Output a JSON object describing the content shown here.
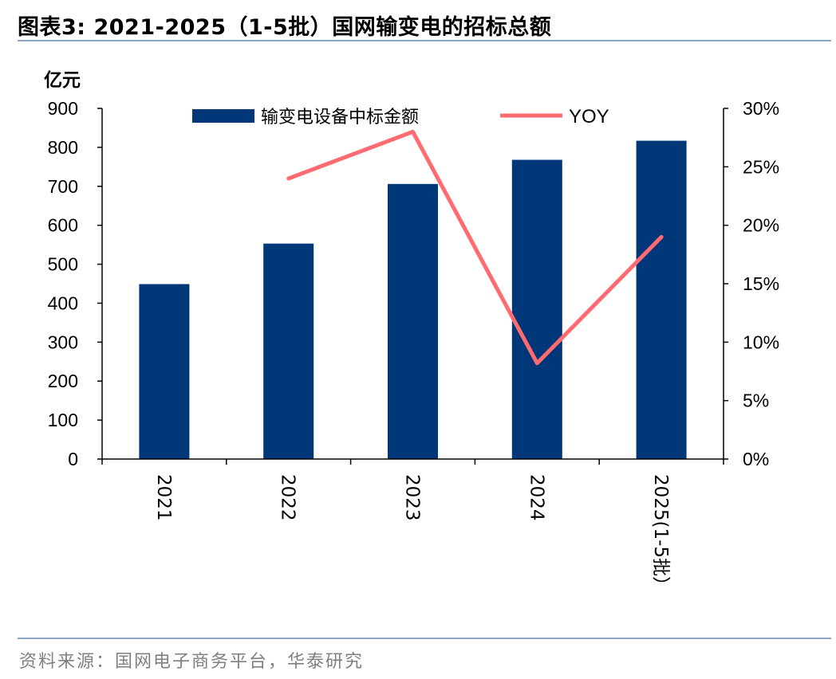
{
  "title": "图表3:  2021-2025（1-5批）国网输变电的招标总额",
  "source": "资料来源：国网电子商务平台，华泰研究",
  "colors": {
    "bar": "#003778",
    "line": "#ff6b70",
    "rule": "#8ea4c4",
    "source_text": "#7f7f7f"
  },
  "chart_data": {
    "type": "bar",
    "categories": [
      "2021",
      "2022",
      "2023",
      "2024",
      "2025(1-5批）"
    ],
    "series": [
      {
        "name": "输变电设备中标金额",
        "type": "bar",
        "axis": "left",
        "values": [
          449,
          553,
          706,
          768,
          817
        ]
      },
      {
        "name": "YOY",
        "type": "line",
        "axis": "right",
        "values": [
          null,
          0.24,
          0.28,
          0.082,
          0.19
        ]
      }
    ],
    "ylabel": "亿元",
    "ylim": [
      0,
      900
    ],
    "yticks": [
      "0",
      "100",
      "200",
      "300",
      "400",
      "500",
      "600",
      "700",
      "800",
      "900"
    ],
    "y2lim": [
      0,
      0.3
    ],
    "y2ticks": [
      "0%",
      "5%",
      "10%",
      "15%",
      "20%",
      "25%",
      "30%"
    ],
    "legend_position": "top",
    "grid": false
  }
}
